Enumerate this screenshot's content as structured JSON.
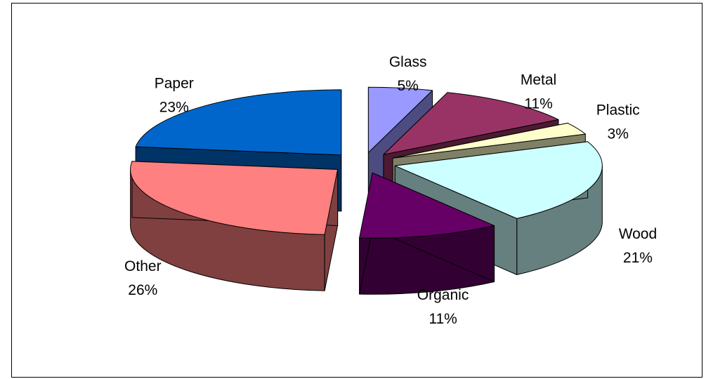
{
  "chart_data": {
    "type": "pie",
    "title": "",
    "slices": [
      {
        "name": "Glass",
        "value": 5,
        "label": "5%",
        "color": "#9999ff",
        "side_color": "#4c4c80"
      },
      {
        "name": "Metal",
        "value": 11,
        "label": "11%",
        "color": "#993366",
        "side_color": "#4c1a33"
      },
      {
        "name": "Plastic",
        "value": 3,
        "label": "3%",
        "color": "#ffffcc",
        "side_color": "#808066"
      },
      {
        "name": "Wood",
        "value": 21,
        "label": "21%",
        "color": "#ccffff",
        "side_color": "#668080"
      },
      {
        "name": "Organic",
        "value": 11,
        "label": "11%",
        "color": "#660066",
        "side_color": "#330033"
      },
      {
        "name": "Other",
        "value": 26,
        "label": "26%",
        "color": "#ff8080",
        "side_color": "#804040"
      },
      {
        "name": "Paper",
        "value": 23,
        "label": "23%",
        "color": "#0066cc",
        "side_color": "#003366"
      }
    ],
    "style": "3d-exploded",
    "legend": "none"
  }
}
